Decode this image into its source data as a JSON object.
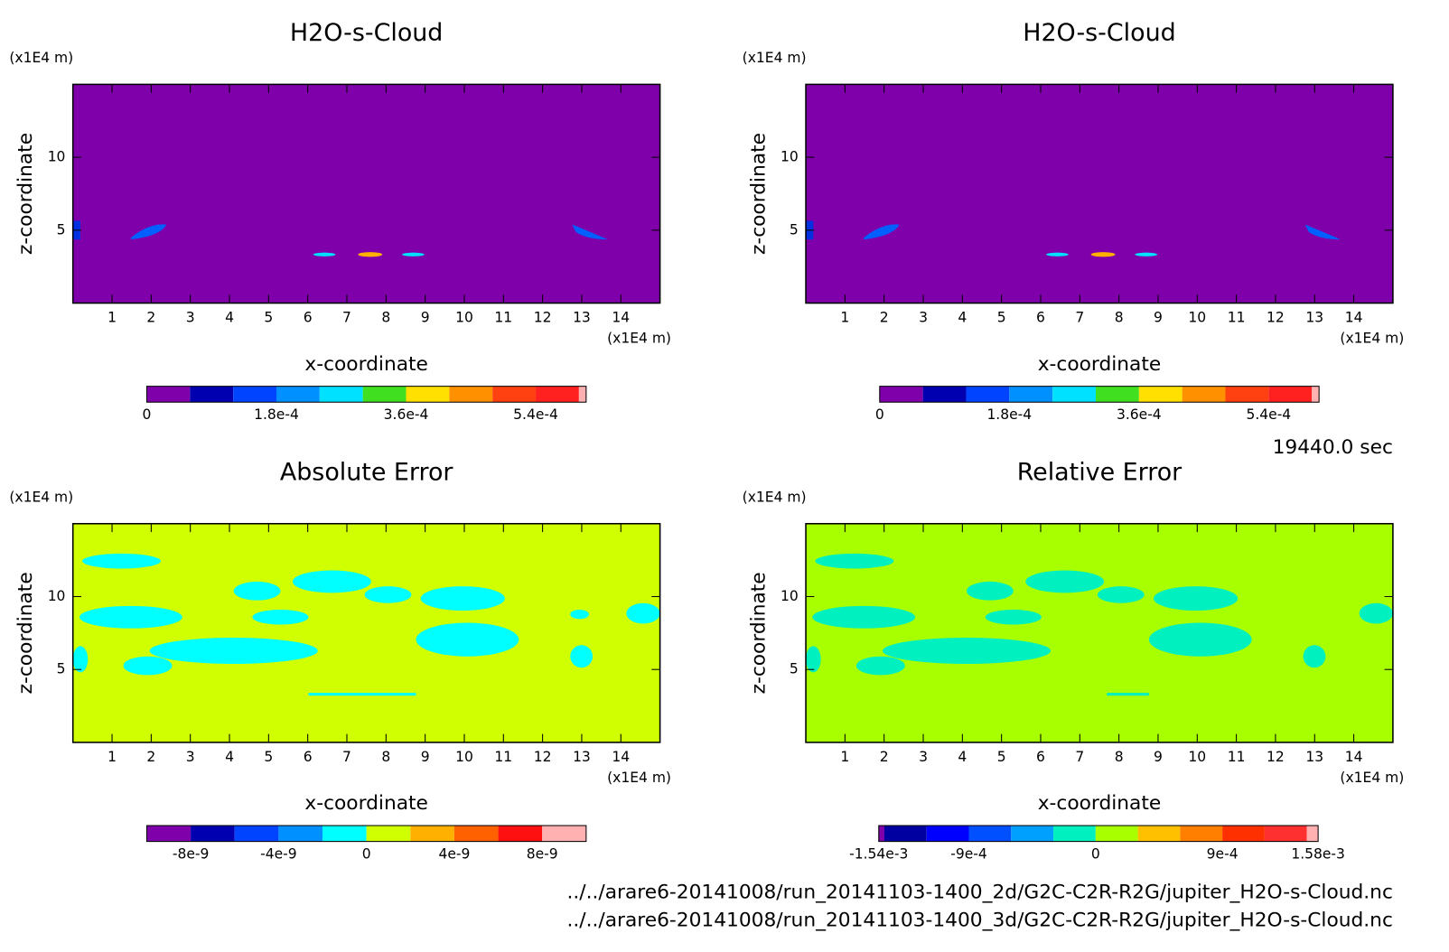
{
  "chart_data": [
    {
      "type": "contour",
      "title": "H2O-s-Cloud",
      "xlabel": "x-coordinate",
      "ylabel": "z-coordinate",
      "xunit": "(x1E4 m)",
      "yunit": "(x1E4 m)",
      "xlim": [
        0,
        15
      ],
      "ylim": [
        0,
        15
      ],
      "xticks": [
        1,
        2,
        3,
        4,
        5,
        6,
        7,
        8,
        9,
        10,
        11,
        12,
        13,
        14
      ],
      "yticks": [
        5,
        10
      ],
      "fill": "#7f00aa",
      "colorbar": {
        "levels": [
          0,
          6e-05,
          0.00012,
          0.00018,
          0.00024,
          0.0003,
          0.00036,
          0.00042,
          0.00048,
          0.00054,
          0.0006,
          0.00061
        ],
        "colors": [
          "#7f00aa",
          "#0000b0",
          "#0044ff",
          "#0090ff",
          "#00e0ff",
          "#40e020",
          "#ffe000",
          "#ff9000",
          "#ff4010",
          "#ff2020",
          "#ffb0b0"
        ],
        "ticks": [
          0,
          {
            "value": 0.00018,
            "label": "1.8e-4"
          },
          {
            "value": 0.00036,
            "label": "3.6e-4"
          },
          {
            "value": 0.00054,
            "label": "5.4e-4"
          }
        ]
      }
    },
    {
      "type": "contour",
      "title": "H2O-s-Cloud",
      "xlabel": "x-coordinate",
      "ylabel": "z-coordinate",
      "xunit": "(x1E4 m)",
      "yunit": "(x1E4 m)",
      "xlim": [
        0,
        15
      ],
      "ylim": [
        0,
        15
      ],
      "xticks": [
        1,
        2,
        3,
        4,
        5,
        6,
        7,
        8,
        9,
        10,
        11,
        12,
        13,
        14
      ],
      "yticks": [
        5,
        10
      ],
      "fill": "#7f00aa",
      "colorbar": {
        "levels": [
          0,
          6e-05,
          0.00012,
          0.00018,
          0.00024,
          0.0003,
          0.00036,
          0.00042,
          0.00048,
          0.00054,
          0.0006,
          0.00061
        ],
        "colors": [
          "#7f00aa",
          "#0000b0",
          "#0044ff",
          "#0090ff",
          "#00e0ff",
          "#40e020",
          "#ffe000",
          "#ff9000",
          "#ff4010",
          "#ff2020",
          "#ffb0b0"
        ],
        "ticks": [
          0,
          {
            "value": 0.00018,
            "label": "1.8e-4"
          },
          {
            "value": 0.00036,
            "label": "3.6e-4"
          },
          {
            "value": 0.00054,
            "label": "5.4e-4"
          }
        ]
      }
    },
    {
      "type": "contour",
      "title": "Absolute Error",
      "xlabel": "x-coordinate",
      "ylabel": "z-coordinate",
      "xunit": "(x1E4 m)",
      "yunit": "(x1E4 m)",
      "xlim": [
        0,
        15
      ],
      "ylim": [
        0,
        15
      ],
      "xticks": [
        1,
        2,
        3,
        4,
        5,
        6,
        7,
        8,
        9,
        10,
        11,
        12,
        13,
        14
      ],
      "yticks": [
        5,
        10
      ],
      "fill": "#cfff00",
      "colorbar": {
        "levels": [
          -1e-08,
          -8e-09,
          -6e-09,
          -4e-09,
          -2e-09,
          0,
          2e-09,
          4e-09,
          6e-09,
          8e-09,
          1e-08
        ],
        "colors": [
          "#7f00aa",
          "#0000b0",
          "#0044ff",
          "#0090ff",
          "#00ffff",
          "#cfff00",
          "#ffb000",
          "#ff6000",
          "#ff1010",
          "#ffb0b0"
        ],
        "ticks": [
          {
            "value": -8e-09,
            "label": "-8e-9"
          },
          {
            "value": -4e-09,
            "label": "-4e-9"
          },
          0,
          {
            "value": 4e-09,
            "label": "4e-9"
          },
          {
            "value": 8e-09,
            "label": "8e-9"
          }
        ]
      }
    },
    {
      "type": "contour",
      "title": "Relative Error",
      "xlabel": "x-coordinate",
      "ylabel": "z-coordinate",
      "xunit": "(x1E4 m)",
      "yunit": "(x1E4 m)",
      "xlim": [
        0,
        15
      ],
      "ylim": [
        0,
        15
      ],
      "xticks": [
        1,
        2,
        3,
        4,
        5,
        6,
        7,
        8,
        9,
        10,
        11,
        12,
        13,
        14
      ],
      "yticks": [
        5,
        10
      ],
      "fill": "#a8ff00",
      "colorbar": {
        "levels": [
          -0.00154,
          -0.0015,
          -0.0012,
          -0.0009,
          -0.0006,
          -0.0003,
          0,
          0.0003,
          0.0006,
          0.0009,
          0.0012,
          0.0015,
          0.00158
        ],
        "colors": [
          "#7f00aa",
          "#0000a0",
          "#0000ff",
          "#0050ff",
          "#00a0ff",
          "#00f0c0",
          "#a8ff00",
          "#ffc000",
          "#ff8000",
          "#ff3000",
          "#ff3030",
          "#ffb0b0"
        ],
        "ticks": [
          {
            "value": -0.00154,
            "label": "-1.54e-3"
          },
          {
            "value": -0.0009,
            "label": "-9e-4"
          },
          0,
          {
            "value": 0.0009,
            "label": "9e-4"
          },
          {
            "value": 0.00158,
            "label": "1.58e-3"
          }
        ]
      }
    }
  ],
  "time": "19440.0 sec",
  "files": [
    "../../arare6-20141008/run_20141103-1400_2d/G2C-C2R-R2G/jupiter_H2O-s-Cloud.nc",
    "../../arare6-20141008/run_20141103-1400_3d/G2C-C2R-R2G/jupiter_H2O-s-Cloud.nc"
  ]
}
